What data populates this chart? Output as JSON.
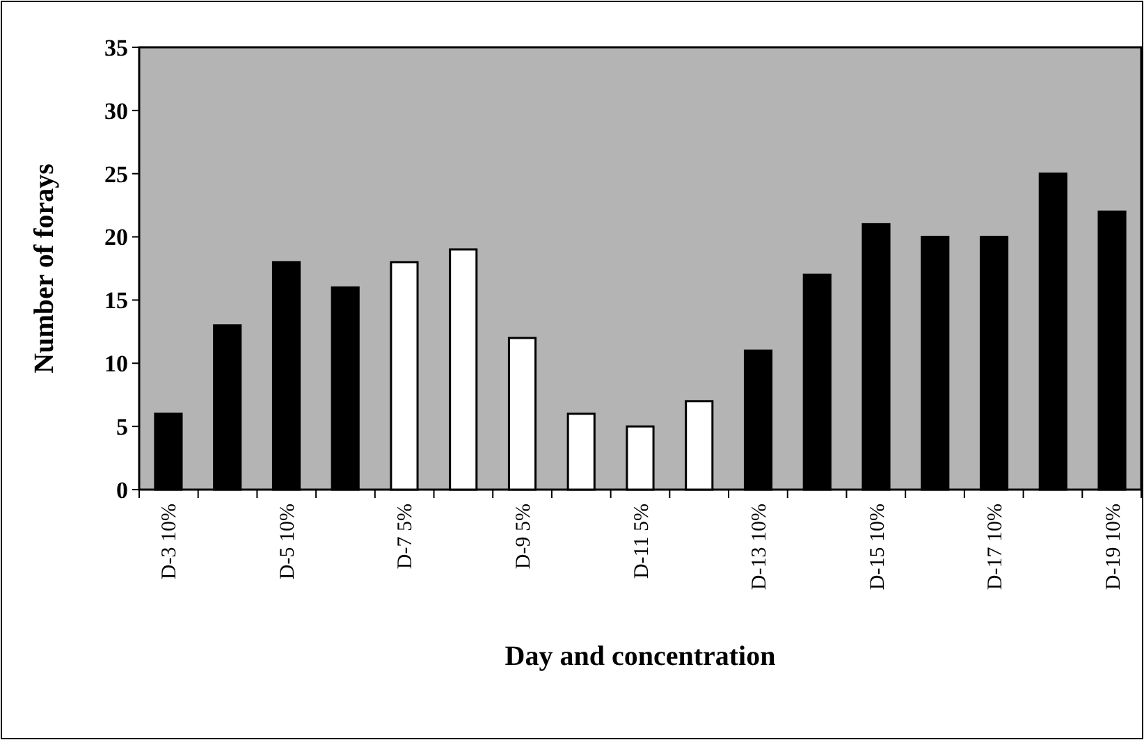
{
  "chart_data": {
    "type": "bar",
    "xlabel": "Day and concentration",
    "ylabel": "Number of forays",
    "categories": [
      "D-3 10%",
      null,
      "D-5 10%",
      null,
      "D-7 5%",
      null,
      "D-9 5%",
      null,
      "D-11 5%",
      null,
      "D-13 10%",
      null,
      "D-15 10%",
      null,
      "D-17 10%",
      null,
      "D-19 10%"
    ],
    "values": [
      6,
      13,
      18,
      16,
      18,
      19,
      12,
      6,
      5,
      7,
      11,
      17,
      21,
      20,
      20,
      25,
      22
    ],
    "colors": [
      "#000000",
      "#000000",
      "#000000",
      "#000000",
      "#ffffff",
      "#ffffff",
      "#ffffff",
      "#ffffff",
      "#ffffff",
      "#ffffff",
      "#000000",
      "#000000",
      "#000000",
      "#000000",
      "#000000",
      "#000000",
      "#000000"
    ],
    "ylim": [
      0,
      35
    ],
    "yticks": [
      0,
      5,
      10,
      15,
      20,
      25,
      30,
      35
    ],
    "grid": false
  }
}
